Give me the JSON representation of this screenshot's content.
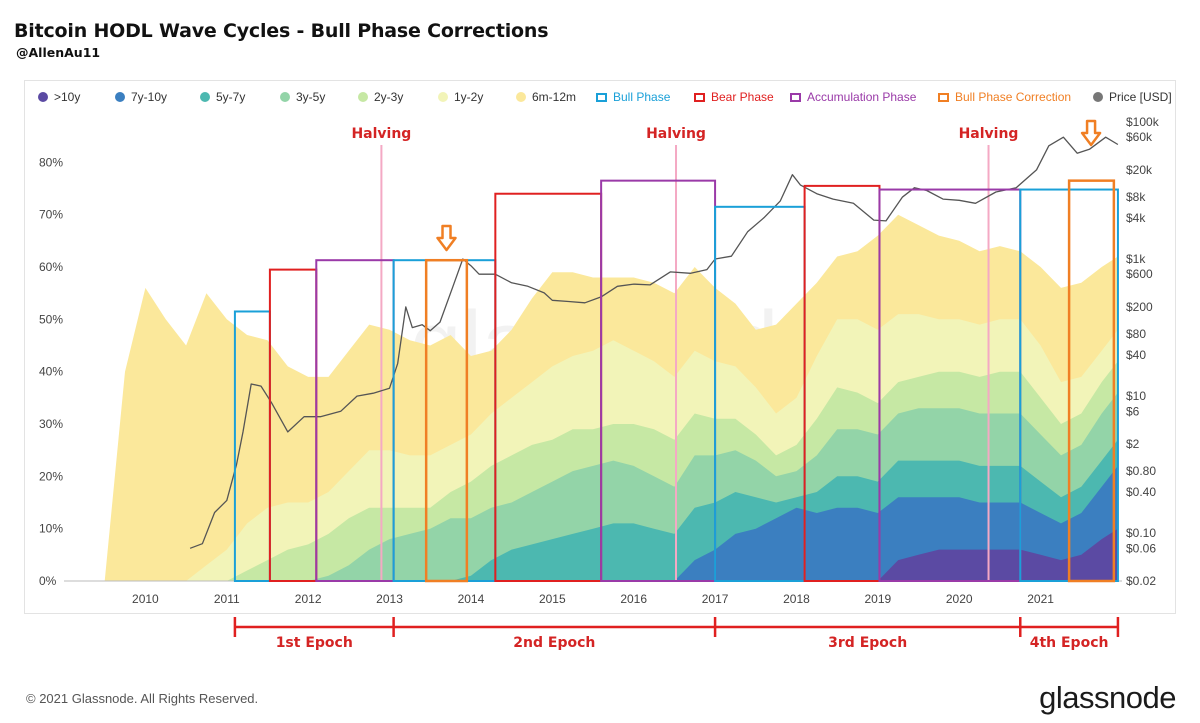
{
  "header": {
    "title": "Bitcoin HODL Wave Cycles - Bull Phase Corrections",
    "author": "@AllenAu11"
  },
  "footer": {
    "copyright": "© 2021 Glassnode. All Rights Reserved.",
    "brand": "glassnode",
    "watermark": "glassnode"
  },
  "legend": [
    {
      "label": ">10y",
      "kind": "dot",
      "color": "#5b4aa3"
    },
    {
      "label": "7y-10y",
      "kind": "dot",
      "color": "#3b7fc0"
    },
    {
      "label": "5y-7y",
      "kind": "dot",
      "color": "#4cb8b0"
    },
    {
      "label": "3y-5y",
      "kind": "dot",
      "color": "#93d4a8"
    },
    {
      "label": "2y-3y",
      "kind": "dot",
      "color": "#c6e8a4"
    },
    {
      "label": "1y-2y",
      "kind": "dot",
      "color": "#f2f4b8"
    },
    {
      "label": "6m-12m",
      "kind": "dot",
      "color": "#fbe89b"
    },
    {
      "label": "Bull Phase",
      "kind": "box",
      "color": "#1aa0d8"
    },
    {
      "label": "Bear Phase",
      "kind": "box",
      "color": "#e02020"
    },
    {
      "label": "Accumulation Phase",
      "kind": "box",
      "color": "#9a3aa8"
    },
    {
      "label": "Bull Phase Correction",
      "kind": "box",
      "color": "#f07f24"
    },
    {
      "label": "Price [USD]",
      "kind": "dot",
      "color": "#777777"
    }
  ],
  "chart_data": {
    "type": "area",
    "stacked": true,
    "x_range": [
      2009.0,
      2022.0
    ],
    "x_ticks": [
      "2010",
      "2011",
      "2012",
      "2013",
      "2014",
      "2015",
      "2016",
      "2017",
      "2018",
      "2019",
      "2020",
      "2021"
    ],
    "y_range": [
      0,
      90
    ],
    "y_ticks": [
      "0%",
      "10%",
      "20%",
      "30%",
      "40%",
      "50%",
      "60%",
      "70%",
      "80%"
    ],
    "y2_scale": "log",
    "y2_ticks": [
      "$0.02",
      "$0.06",
      "$0.10",
      "$0.40",
      "$0.80",
      "$2",
      "$6",
      "$10",
      "$40",
      "$80",
      "$200",
      "$600",
      "$1k",
      "$4k",
      "$8k",
      "$20k",
      "$60k",
      "$100k"
    ],
    "x": [
      2009.5,
      2009.75,
      2010.0,
      2010.25,
      2010.5,
      2010.75,
      2011.0,
      2011.25,
      2011.5,
      2011.75,
      2012.0,
      2012.25,
      2012.5,
      2012.75,
      2013.0,
      2013.25,
      2013.5,
      2013.75,
      2014.0,
      2014.25,
      2014.5,
      2014.75,
      2015.0,
      2015.25,
      2015.5,
      2015.75,
      2016.0,
      2016.25,
      2016.5,
      2016.75,
      2017.0,
      2017.25,
      2017.5,
      2017.75,
      2018.0,
      2018.25,
      2018.5,
      2018.75,
      2019.0,
      2019.25,
      2019.5,
      2019.75,
      2020.0,
      2020.25,
      2020.5,
      2020.75,
      2021.0,
      2021.25,
      2021.5,
      2021.75,
      2021.95
    ],
    "series": [
      {
        "name": ">10y",
        "color": "#5b4aa3",
        "values": [
          0,
          0,
          0,
          0,
          0,
          0,
          0,
          0,
          0,
          0,
          0,
          0,
          0,
          0,
          0,
          0,
          0,
          0,
          0,
          0,
          0,
          0,
          0,
          0,
          0,
          0,
          0,
          0,
          0,
          0,
          0,
          0,
          0,
          0,
          0,
          0,
          0,
          0,
          0,
          4,
          5,
          6,
          6,
          6,
          6,
          6,
          5,
          4,
          5,
          8,
          10
        ]
      },
      {
        "name": "7y-10y",
        "color": "#3b7fc0",
        "values": [
          0,
          0,
          0,
          0,
          0,
          0,
          0,
          0,
          0,
          0,
          0,
          0,
          0,
          0,
          0,
          0,
          0,
          0,
          0,
          0,
          0,
          0,
          0,
          0,
          0,
          0,
          0,
          0,
          0,
          4,
          6,
          9,
          10,
          12,
          14,
          13,
          14,
          14,
          13,
          12,
          11,
          10,
          10,
          9,
          9,
          9,
          8,
          7,
          8,
          10,
          12
        ]
      },
      {
        "name": "5y-7y",
        "color": "#4cb8b0",
        "values": [
          0,
          0,
          0,
          0,
          0,
          0,
          0,
          0,
          0,
          0,
          0,
          0,
          0,
          0,
          0,
          0,
          0,
          0,
          1,
          4,
          6,
          7,
          8,
          9,
          10,
          11,
          11,
          10,
          9,
          10,
          9,
          8,
          6,
          3,
          2,
          4,
          6,
          6,
          6,
          7,
          7,
          7,
          7,
          7,
          7,
          7,
          6,
          5,
          5,
          5,
          5
        ]
      },
      {
        "name": "3y-5y",
        "color": "#93d4a8",
        "values": [
          0,
          0,
          0,
          0,
          0,
          0,
          0,
          0,
          0,
          0,
          0,
          1,
          3,
          6,
          8,
          9,
          10,
          12,
          11,
          10,
          9,
          10,
          11,
          12,
          12,
          12,
          11,
          10,
          9,
          10,
          9,
          8,
          7,
          5,
          5,
          7,
          9,
          9,
          9,
          9,
          10,
          10,
          10,
          10,
          10,
          10,
          9,
          8,
          8,
          9,
          9
        ]
      },
      {
        "name": "2y-3y",
        "color": "#c6e8a4",
        "values": [
          0,
          0,
          0,
          0,
          0,
          0,
          0,
          2,
          4,
          6,
          7,
          8,
          9,
          8,
          6,
          5,
          4,
          5,
          7,
          8,
          9,
          9,
          8,
          8,
          7,
          7,
          8,
          9,
          9,
          8,
          7,
          6,
          5,
          4,
          5,
          7,
          8,
          7,
          6,
          6,
          6,
          7,
          7,
          7,
          8,
          8,
          7,
          6,
          6,
          6,
          6
        ]
      },
      {
        "name": "1y-2y",
        "color": "#f2f4b8",
        "values": [
          0,
          0,
          0,
          0,
          0,
          3,
          6,
          9,
          10,
          9,
          8,
          8,
          9,
          11,
          11,
          10,
          10,
          9,
          9,
          10,
          11,
          12,
          14,
          14,
          15,
          16,
          14,
          13,
          12,
          12,
          11,
          10,
          9,
          8,
          9,
          12,
          13,
          14,
          14,
          13,
          12,
          10,
          10,
          10,
          10,
          10,
          10,
          8,
          7,
          6,
          6
        ]
      },
      {
        "name": "6m-12m",
        "color": "#fbe89b",
        "values": [
          0,
          40,
          56,
          50,
          45,
          52,
          44,
          36,
          32,
          26,
          24,
          22,
          23,
          24,
          23,
          22,
          21,
          21,
          15,
          12,
          13,
          16,
          18,
          16,
          14,
          12,
          14,
          15,
          16,
          16,
          14,
          12,
          11,
          17,
          18,
          14,
          12,
          13,
          18,
          19,
          17,
          16,
          15,
          14,
          14,
          13,
          15,
          18,
          18,
          16,
          14
        ]
      }
    ],
    "price": {
      "name": "Price [USD]",
      "color": "#555555",
      "x": [
        2010.55,
        2010.7,
        2010.85,
        2011.0,
        2011.12,
        2011.2,
        2011.3,
        2011.42,
        2011.55,
        2011.75,
        2011.95,
        2012.15,
        2012.4,
        2012.6,
        2012.8,
        2013.0,
        2013.1,
        2013.2,
        2013.28,
        2013.4,
        2013.5,
        2013.62,
        2013.78,
        2013.9,
        2014.0,
        2014.1,
        2014.3,
        2014.5,
        2014.7,
        2014.9,
        2015.0,
        2015.2,
        2015.4,
        2015.6,
        2015.8,
        2016.0,
        2016.2,
        2016.45,
        2016.7,
        2016.9,
        2017.0,
        2017.2,
        2017.4,
        2017.6,
        2017.8,
        2017.95,
        2018.05,
        2018.25,
        2018.45,
        2018.7,
        2018.95,
        2019.1,
        2019.3,
        2019.45,
        2019.6,
        2019.8,
        2020.0,
        2020.2,
        2020.45,
        2020.7,
        2020.95,
        2021.1,
        2021.28,
        2021.45,
        2021.6,
        2021.8,
        2021.95
      ],
      "values": [
        0.06,
        0.07,
        0.2,
        0.3,
        1,
        3,
        15,
        14,
        8,
        3,
        5,
        5,
        6,
        10,
        11,
        13,
        30,
        200,
        100,
        110,
        90,
        120,
        400,
        1000,
        800,
        600,
        600,
        450,
        400,
        320,
        250,
        240,
        230,
        280,
        400,
        430,
        420,
        650,
        620,
        700,
        1000,
        1100,
        2500,
        4000,
        7000,
        17000,
        12000,
        9000,
        7500,
        6500,
        3700,
        3600,
        8000,
        11000,
        10000,
        7500,
        7200,
        6500,
        9500,
        11000,
        20000,
        45000,
        60000,
        35000,
        40000,
        60000,
        47000
      ]
    },
    "phases": [
      {
        "kind": "bull",
        "label": "Bull Phase",
        "start": 2011.1,
        "end": 2011.53,
        "top": 51.5
      },
      {
        "kind": "bear",
        "label": "Bear Phase",
        "start": 2011.53,
        "end": 2012.1,
        "top": 59.5
      },
      {
        "kind": "accumulation",
        "label": "Accumulation Phase",
        "start": 2012.1,
        "end": 2013.05,
        "top": 61.3
      },
      {
        "kind": "bull",
        "label": "Bull Phase",
        "start": 2013.05,
        "end": 2014.3,
        "top": 61.3
      },
      {
        "kind": "correction",
        "label": "Bull Phase Correction",
        "start": 2013.45,
        "end": 2013.95,
        "top": 61.3
      },
      {
        "kind": "bear",
        "label": "Bear Phase",
        "start": 2014.3,
        "end": 2015.6,
        "top": 74
      },
      {
        "kind": "accumulation",
        "label": "Accumulation Phase",
        "start": 2015.6,
        "end": 2017.0,
        "top": 76.5
      },
      {
        "kind": "bull",
        "label": "Bull Phase",
        "start": 2017.0,
        "end": 2018.1,
        "top": 71.5
      },
      {
        "kind": "bear",
        "label": "Bear Phase",
        "start": 2018.1,
        "end": 2019.02,
        "top": 75.5
      },
      {
        "kind": "accumulation",
        "label": "Accumulation Phase",
        "start": 2019.02,
        "end": 2020.75,
        "top": 74.8
      },
      {
        "kind": "bull",
        "label": "Bull Phase",
        "start": 2020.75,
        "end": 2021.95,
        "top": 74.8
      },
      {
        "kind": "correction",
        "label": "Bull Phase Correction",
        "start": 2021.35,
        "end": 2021.9,
        "top": 76.5
      }
    ],
    "halvings": [
      {
        "label": "Halving",
        "x": 2012.9
      },
      {
        "label": "Halving",
        "x": 2016.52
      },
      {
        "label": "Halving",
        "x": 2020.36
      }
    ],
    "correction_arrows": [
      2013.7,
      2021.62
    ],
    "epochs": [
      {
        "label": "1st Epoch",
        "start": 2011.1,
        "end": 2013.05
      },
      {
        "label": "2nd Epoch",
        "start": 2013.05,
        "end": 2017.0
      },
      {
        "label": "3rd Epoch",
        "start": 2017.0,
        "end": 2020.75
      },
      {
        "label": "4th Epoch",
        "start": 2020.75,
        "end": 2021.95
      }
    ]
  }
}
